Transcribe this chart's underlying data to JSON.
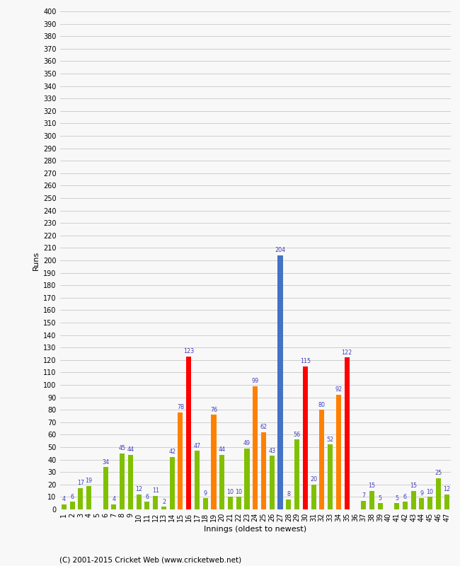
{
  "innings": [
    1,
    2,
    3,
    4,
    5,
    6,
    7,
    8,
    9,
    10,
    11,
    12,
    13,
    14,
    15,
    16,
    17,
    18,
    19,
    20,
    21,
    22,
    23,
    24,
    25,
    26,
    27,
    28,
    29,
    30,
    31,
    32,
    33,
    34,
    35,
    36,
    37,
    38,
    39,
    40,
    41,
    42,
    43,
    44,
    45,
    46,
    47
  ],
  "values": [
    4,
    6,
    17,
    19,
    0,
    34,
    4,
    45,
    44,
    12,
    6,
    11,
    2,
    42,
    78,
    123,
    47,
    9,
    76,
    44,
    10,
    10,
    49,
    99,
    62,
    43,
    204,
    8,
    56,
    115,
    20,
    80,
    52,
    92,
    122,
    0,
    7,
    15,
    5,
    0,
    5,
    6,
    15,
    9,
    10,
    25,
    12
  ],
  "colors": [
    "#80c000",
    "#80c000",
    "#80c000",
    "#80c000",
    "#80c000",
    "#80c000",
    "#80c000",
    "#80c000",
    "#80c000",
    "#80c000",
    "#80c000",
    "#80c000",
    "#80c000",
    "#80c000",
    "#ff8000",
    "#ff0000",
    "#80c000",
    "#80c000",
    "#ff8000",
    "#80c000",
    "#80c000",
    "#80c000",
    "#80c000",
    "#ff8000",
    "#ff8000",
    "#80c000",
    "#4472c4",
    "#80c000",
    "#80c000",
    "#ff0000",
    "#80c000",
    "#ff8000",
    "#80c000",
    "#ff8000",
    "#ff0000",
    "#80c000",
    "#80c000",
    "#80c000",
    "#80c000",
    "#80c000",
    "#80c000",
    "#80c000",
    "#80c000",
    "#80c000",
    "#80c000",
    "#80c000",
    "#80c000"
  ],
  "ylabel": "Runs",
  "xlabel": "Innings (oldest to newest)",
  "footer": "(C) 2001-2015 Cricket Web (www.cricketweb.net)",
  "ylim": [
    0,
    400
  ],
  "yticks": [
    0,
    10,
    20,
    30,
    40,
    50,
    60,
    70,
    80,
    90,
    100,
    110,
    120,
    130,
    140,
    150,
    160,
    170,
    180,
    190,
    200,
    210,
    220,
    230,
    240,
    250,
    260,
    270,
    280,
    290,
    300,
    310,
    320,
    330,
    340,
    350,
    360,
    370,
    380,
    390,
    400
  ],
  "background_color": "#f8f8f8",
  "label_color": "#4040c0",
  "grid_color": "#c8c8c8",
  "axis_label_fontsize": 8,
  "tick_fontsize": 7,
  "footer_fontsize": 7.5,
  "bar_width": 0.6
}
